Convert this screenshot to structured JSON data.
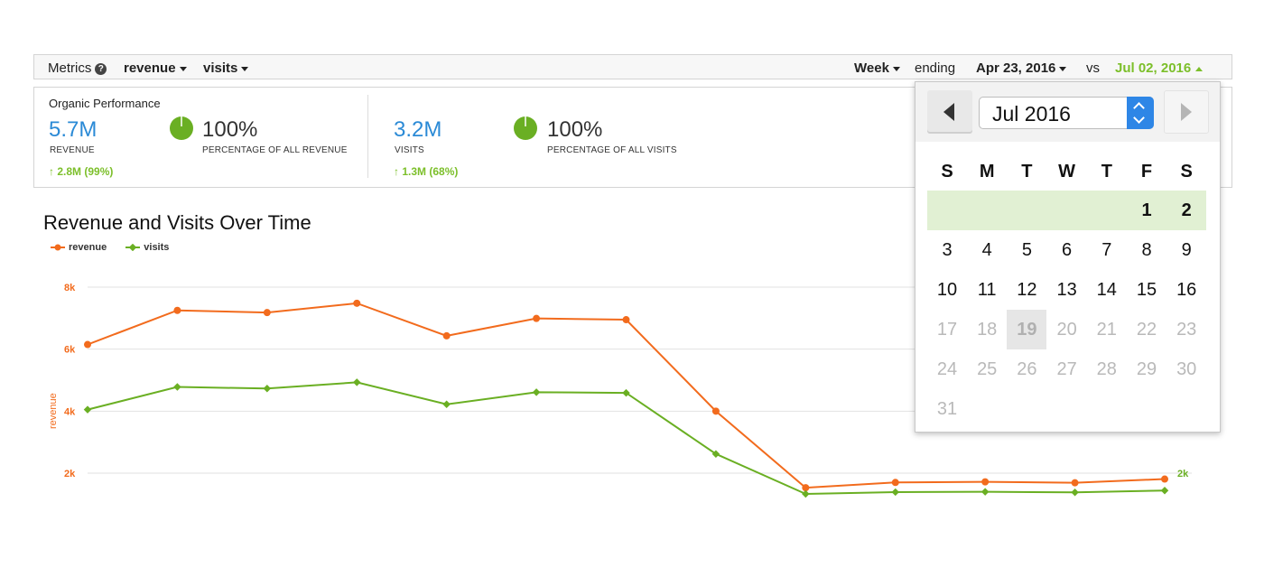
{
  "toolbar": {
    "metrics_label": "Metrics",
    "help_icon": "?",
    "metric1": "revenue",
    "metric2": "visits",
    "period": "Week",
    "ending_label": "ending",
    "end_date": "Apr 23, 2016",
    "vs_label": "vs",
    "compare_date": "Jul 02, 2016"
  },
  "kpi": {
    "panel_title": "Organic Performance",
    "revenue": {
      "value": "5.7M",
      "label": "REVENUE",
      "change": "2.8M (99%)",
      "pct": "100%",
      "pct_label": "PERCENTAGE OF ALL REVENUE"
    },
    "visits": {
      "value": "3.2M",
      "label": "VISITS",
      "change": "1.3M (68%)",
      "pct": "100%",
      "pct_label": "PERCENTAGE OF ALL VISITS"
    }
  },
  "colors": {
    "revenue": "#f26b1d",
    "visits": "#6aaf23",
    "accent_blue": "#2b8ad6",
    "positive": "#7cbf2a"
  },
  "chart_data": {
    "type": "line",
    "title": "Revenue and Visits Over Time",
    "legend_position": "top-left",
    "ylabel": "revenue",
    "y_ticks_left": [
      "8k",
      "6k",
      "4k",
      "2k"
    ],
    "y_ticks_left_values": [
      8000,
      6000,
      4000,
      2000
    ],
    "y_tick_right": "2k",
    "ylim": [
      1000,
      8000
    ],
    "grid": true,
    "series": [
      {
        "name": "revenue",
        "values": [
          6150,
          7250,
          7180,
          7480,
          6430,
          6990,
          6950,
          4000,
          1530,
          1700,
          1720,
          1690,
          1810
        ]
      },
      {
        "name": "visits",
        "values": [
          4050,
          4780,
          4730,
          4930,
          4220,
          4610,
          4590,
          2620,
          1330,
          1390,
          1400,
          1380,
          1440
        ]
      }
    ]
  },
  "calendar": {
    "month_label": "Jul 2016",
    "weekdays": [
      "S",
      "M",
      "T",
      "W",
      "T",
      "F",
      "S"
    ],
    "weeks": [
      [
        "",
        "",
        "",
        "",
        "",
        "1",
        "2"
      ],
      [
        "3",
        "4",
        "5",
        "6",
        "7",
        "8",
        "9"
      ],
      [
        "10",
        "11",
        "12",
        "13",
        "14",
        "15",
        "16"
      ],
      [
        "17",
        "18",
        "19",
        "20",
        "21",
        "22",
        "23"
      ],
      [
        "24",
        "25",
        "26",
        "27",
        "28",
        "29",
        "30"
      ],
      [
        "31",
        "",
        "",
        "",
        "",
        "",
        ""
      ]
    ],
    "selected_week": 0,
    "today": "19",
    "disabled_from": 17
  }
}
